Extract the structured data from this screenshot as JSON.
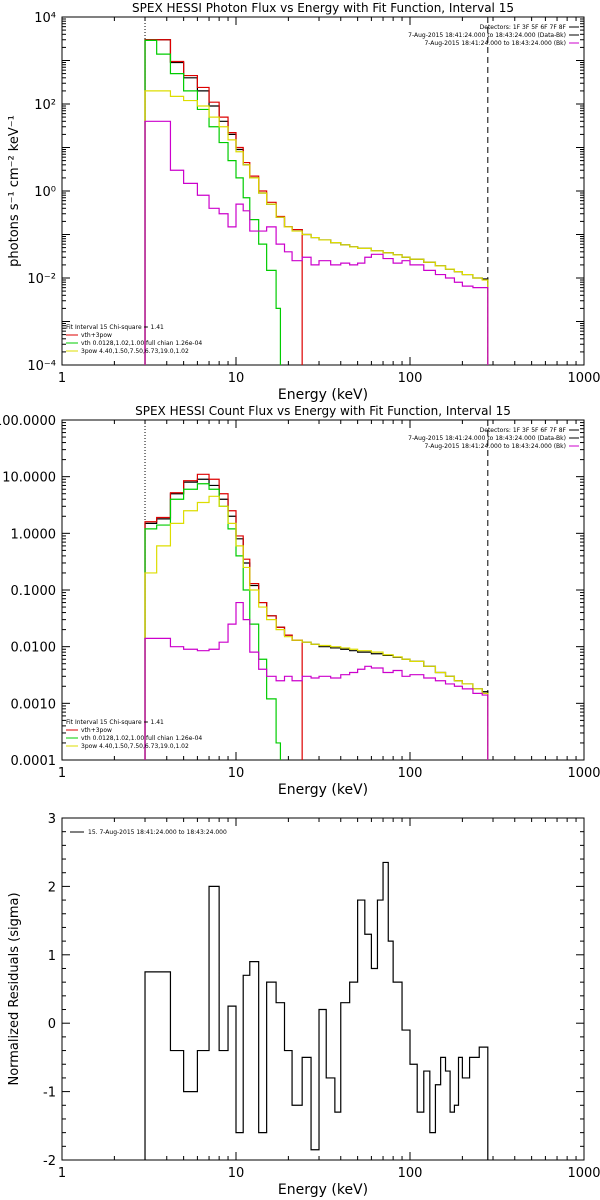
{
  "chart_data": [
    {
      "type": "line",
      "title": "SPEX HESSI Photon Flux vs Energy with Fit Function, Interval 15",
      "xlabel": "Energy (keV)",
      "ylabel": "photons s⁻¹ cm⁻² keV⁻¹",
      "xscale": "log",
      "yscale": "log",
      "xlim": [
        1,
        1000
      ],
      "ylim": [
        0.0001,
        10000
      ],
      "xticks": [
        1,
        10,
        100,
        1000
      ],
      "xtick_labels": [
        "1",
        "10",
        "100",
        "1000"
      ],
      "yticks": [
        0.0001,
        0.01,
        1,
        100,
        10000
      ],
      "ytick_labels": [
        "10⁻⁴",
        "10⁻²",
        "10⁰",
        "10²",
        "10⁴"
      ],
      "legend_topright": [
        {
          "text": "Detectors: 1F 3F 5F 6F 7F 8F",
          "color": "#000000"
        },
        {
          "text": "7-Aug-2015 18:41:24.000 to 18:43:24.000 (Data-Bk)",
          "color": "#000000"
        },
        {
          "text": "7-Aug-2015 18:41:24.000 to 18:43:24.000 (Bk)",
          "color": "#cc00cc"
        }
      ],
      "legend_bottomleft": [
        {
          "text": "Fit Interval 15   Chi-square = 1.41",
          "color": null
        },
        {
          "text": "vth+3pow",
          "color": "#dd0000"
        },
        {
          "text": "vth 0.0128,1.02,1.00  full chian 1.26e-04",
          "color": "#00cc00"
        },
        {
          "text": "3pow 4.40,1.50,7.50,6.73,19.0,1.02",
          "color": "#dddd00"
        }
      ],
      "vlines": [
        {
          "x": 3,
          "style": "dotted",
          "color": "#000000"
        },
        {
          "x": 280,
          "style": "dashed",
          "color": "#000000"
        }
      ],
      "series": [
        {
          "color": "#000000",
          "x": [
            3,
            3.5,
            4.2,
            5,
            6,
            7,
            8,
            9,
            10,
            11,
            12,
            13.5,
            15,
            17,
            19,
            21,
            24,
            27,
            30,
            35,
            40,
            45,
            50,
            60,
            70,
            80,
            90,
            100,
            120,
            140,
            160,
            180,
            200,
            230,
            260,
            280
          ],
          "y": [
            3000,
            3000,
            900,
            400,
            200,
            90,
            40,
            20,
            9,
            4,
            2,
            0.9,
            0.5,
            0.25,
            0.15,
            0.13,
            0.1,
            0.085,
            0.075,
            0.065,
            0.058,
            0.052,
            0.048,
            0.042,
            0.038,
            0.034,
            0.03,
            0.027,
            0.023,
            0.019,
            0.016,
            0.014,
            0.012,
            0.01,
            0.0095,
            0.009
          ]
        },
        {
          "color": "#dd0000",
          "x": [
            3,
            3.5,
            4.2,
            5,
            6,
            7,
            8,
            9,
            10,
            11,
            12,
            13.5,
            15,
            17,
            19,
            21,
            24
          ],
          "y": [
            3000,
            3000,
            950,
            450,
            240,
            110,
            50,
            22,
            10,
            4.5,
            2.2,
            1.0,
            0.55,
            0.26,
            0.15,
            0.13,
            0.1
          ]
        },
        {
          "color": "#00cc00",
          "x": [
            3,
            3.5,
            4.2,
            5,
            6,
            7,
            8,
            9,
            10,
            11,
            12,
            13.5,
            15,
            17,
            18
          ],
          "y": [
            2900,
            1400,
            500,
            200,
            75,
            30,
            13,
            5,
            2,
            0.7,
            0.22,
            0.06,
            0.015,
            0.002,
            0.0002
          ]
        },
        {
          "color": "#dddd00",
          "x": [
            3,
            3.5,
            4.2,
            5,
            6,
            7,
            8,
            9,
            10,
            11,
            12,
            13.5,
            15,
            17,
            19,
            21,
            24,
            27,
            30,
            35,
            40,
            45,
            50,
            60,
            70,
            80,
            90,
            100,
            120,
            140,
            160,
            180,
            200,
            230,
            260,
            280
          ],
          "y": [
            200,
            200,
            150,
            120,
            90,
            50,
            30,
            15,
            8,
            4,
            2,
            0.9,
            0.5,
            0.25,
            0.15,
            0.12,
            0.1,
            0.085,
            0.075,
            0.065,
            0.058,
            0.052,
            0.048,
            0.042,
            0.038,
            0.034,
            0.03,
            0.027,
            0.023,
            0.019,
            0.016,
            0.014,
            0.012,
            0.01,
            0.009,
            0.0085
          ]
        },
        {
          "color": "#cc00cc",
          "x": [
            3,
            3.5,
            4.2,
            5,
            6,
            7,
            8,
            9,
            10,
            11,
            12,
            13.5,
            15,
            17,
            19,
            21,
            24,
            27,
            30,
            35,
            40,
            45,
            50,
            55,
            60,
            70,
            80,
            90,
            100,
            120,
            140,
            160,
            180,
            200,
            230,
            260,
            280
          ],
          "y": [
            40,
            40,
            3,
            1.5,
            0.8,
            0.4,
            0.3,
            0.15,
            0.5,
            0.35,
            0.12,
            0.12,
            0.15,
            0.06,
            0.04,
            0.025,
            0.03,
            0.02,
            0.025,
            0.02,
            0.022,
            0.02,
            0.022,
            0.03,
            0.035,
            0.028,
            0.022,
            0.025,
            0.02,
            0.015,
            0.012,
            0.01,
            0.008,
            0.0065,
            0.006,
            0.006,
            0.0055
          ]
        }
      ]
    },
    {
      "type": "line",
      "title": "SPEX HESSI Count Flux vs Energy with Fit Function, Interval 15",
      "xlabel": "Energy (keV)",
      "ylabel": "",
      "xscale": "log",
      "yscale": "log",
      "xlim": [
        1,
        1000
      ],
      "ylim": [
        0.0001,
        100
      ],
      "xticks": [
        1,
        10,
        100,
        1000
      ],
      "xtick_labels": [
        "1",
        "10",
        "100",
        "1000"
      ],
      "yticks": [
        0.0001,
        0.001,
        0.01,
        0.1,
        1,
        10,
        100
      ],
      "ytick_labels": [
        "0.0001",
        "0.0010",
        "0.0100",
        "0.1000",
        "1.0000",
        "10.0000",
        "100.0000"
      ],
      "legend_topright": [
        {
          "text": "Detectors: 1F 3F 5F 6F 7F 8F",
          "color": "#000000"
        },
        {
          "text": "7-Aug-2015 18:41:24.000 to 18:43:24.000 (Data-Bk)",
          "color": "#000000"
        },
        {
          "text": "7-Aug-2015 18:41:24.000 to 18:43:24.000 (Bk)",
          "color": "#cc00cc"
        }
      ],
      "legend_bottomleft": [
        {
          "text": "Fit Interval 15   Chi-square = 1.41",
          "color": null
        },
        {
          "text": "vth+3pow",
          "color": "#dd0000"
        },
        {
          "text": "vth 0.0128,1.02,1.00  full chian 1.26e-04",
          "color": "#00cc00"
        },
        {
          "text": "3pow 4.40,1.50,7.50,6.73,19.0,1.02",
          "color": "#dddd00"
        }
      ],
      "vlines": [
        {
          "x": 3,
          "style": "dotted",
          "color": "#000000"
        },
        {
          "x": 280,
          "style": "dashed",
          "color": "#000000"
        }
      ],
      "series": [
        {
          "color": "#000000",
          "x": [
            3,
            3.5,
            4.2,
            5,
            6,
            7,
            8,
            9,
            10,
            11,
            12,
            13.5,
            15,
            17,
            19,
            21,
            24,
            27,
            30,
            35,
            40,
            45,
            50,
            60,
            70,
            80,
            90,
            100,
            120,
            140,
            160,
            180,
            200,
            230,
            260,
            280
          ],
          "y": [
            1.5,
            1.8,
            5,
            8,
            9,
            7,
            4,
            2,
            0.8,
            0.3,
            0.12,
            0.06,
            0.035,
            0.022,
            0.016,
            0.013,
            0.012,
            0.011,
            0.01,
            0.0095,
            0.009,
            0.0085,
            0.008,
            0.0075,
            0.007,
            0.0065,
            0.006,
            0.0055,
            0.0045,
            0.0035,
            0.003,
            0.0025,
            0.0022,
            0.0018,
            0.0016,
            0.0015
          ]
        },
        {
          "color": "#dd0000",
          "x": [
            3,
            3.5,
            4.2,
            5,
            6,
            7,
            8,
            9,
            10,
            11,
            12,
            13.5,
            15,
            17,
            19,
            21,
            24
          ],
          "y": [
            1.6,
            1.9,
            5.2,
            8.5,
            11,
            9,
            5,
            2.5,
            0.9,
            0.35,
            0.13,
            0.06,
            0.035,
            0.022,
            0.016,
            0.013,
            0.012
          ]
        },
        {
          "color": "#00cc00",
          "x": [
            3,
            3.5,
            4.2,
            5,
            6,
            7,
            8,
            9,
            10,
            11,
            12,
            13.5,
            15,
            17,
            18
          ],
          "y": [
            1.2,
            1.4,
            4,
            6,
            7.5,
            6,
            3,
            1.2,
            0.4,
            0.1,
            0.025,
            0.006,
            0.0012,
            0.0002,
            0.0001
          ]
        },
        {
          "color": "#dddd00",
          "x": [
            3,
            3.5,
            4.2,
            5,
            6,
            7,
            8,
            9,
            10,
            11,
            12,
            13.5,
            15,
            17,
            19,
            21,
            24,
            27,
            30,
            35,
            40,
            45,
            50,
            60,
            70,
            80,
            90,
            100,
            120,
            140,
            160,
            180,
            200,
            230,
            260,
            280
          ],
          "y": [
            0.2,
            0.6,
            1.5,
            2.5,
            3.5,
            4.5,
            3,
            1.5,
            0.6,
            0.25,
            0.1,
            0.05,
            0.03,
            0.02,
            0.015,
            0.013,
            0.012,
            0.011,
            0.0105,
            0.01,
            0.0095,
            0.009,
            0.0085,
            0.008,
            0.0072,
            0.0066,
            0.006,
            0.0055,
            0.0045,
            0.0035,
            0.003,
            0.0025,
            0.0022,
            0.0018,
            0.0015,
            0.0013
          ]
        },
        {
          "color": "#cc00cc",
          "x": [
            3,
            3.5,
            4.2,
            5,
            6,
            7,
            8,
            9,
            10,
            11,
            12,
            13.5,
            15,
            17,
            19,
            21,
            24,
            27,
            30,
            35,
            40,
            45,
            50,
            55,
            60,
            70,
            80,
            90,
            100,
            120,
            140,
            160,
            180,
            200,
            230,
            260,
            280
          ],
          "y": [
            0.014,
            0.014,
            0.01,
            0.009,
            0.0085,
            0.009,
            0.012,
            0.025,
            0.06,
            0.03,
            0.008,
            0.004,
            0.003,
            0.0025,
            0.003,
            0.0025,
            0.003,
            0.0028,
            0.003,
            0.0028,
            0.0032,
            0.0035,
            0.004,
            0.0045,
            0.0042,
            0.0035,
            0.0038,
            0.003,
            0.0032,
            0.0028,
            0.0025,
            0.0022,
            0.002,
            0.0018,
            0.0015,
            0.0014,
            0.0012
          ]
        }
      ]
    },
    {
      "type": "line",
      "title": "",
      "xlabel": "Energy (keV)",
      "ylabel": "Normalized Residuals (sigma)",
      "xscale": "log",
      "yscale": "linear",
      "xlim": [
        1,
        1000
      ],
      "ylim": [
        -2,
        3
      ],
      "xticks": [
        1,
        10,
        100,
        1000
      ],
      "xtick_labels": [
        "1",
        "10",
        "100",
        "1000"
      ],
      "yticks": [
        -2,
        -1,
        0,
        1,
        2,
        3
      ],
      "ytick_labels": [
        "-2",
        "-1",
        "0",
        "1",
        "2",
        "3"
      ],
      "legend_topleft": [
        {
          "text": "15.  7-Aug-2015 18:41:24.000 to 18:43:24.000",
          "color": "#000000"
        }
      ],
      "series": [
        {
          "color": "#000000",
          "step": true,
          "edges": [
            3,
            3.5,
            4.2,
            5,
            6,
            7,
            8,
            9,
            10,
            11,
            12,
            13.5,
            15,
            17,
            19,
            21,
            24,
            27,
            30,
            33,
            37,
            40,
            45,
            50,
            55,
            60,
            65,
            70,
            75,
            80,
            90,
            100,
            110,
            120,
            130,
            140,
            150,
            160,
            170,
            180,
            190,
            200,
            220,
            250,
            280
          ],
          "values": [
            0.75,
            0.75,
            -0.4,
            -1.0,
            -0.4,
            2.0,
            -0.4,
            0.25,
            -1.6,
            0.7,
            0.9,
            -1.6,
            0.6,
            0.3,
            -0.4,
            -1.2,
            -0.5,
            -1.85,
            0.2,
            -0.8,
            -1.3,
            0.3,
            0.6,
            1.8,
            1.3,
            0.8,
            1.8,
            2.35,
            1.2,
            0.6,
            -0.1,
            -0.6,
            -1.3,
            -0.7,
            -1.6,
            -0.9,
            -0.5,
            -0.7,
            -1.3,
            -1.2,
            -0.5,
            -0.8,
            -0.5,
            -0.35
          ]
        }
      ]
    }
  ]
}
